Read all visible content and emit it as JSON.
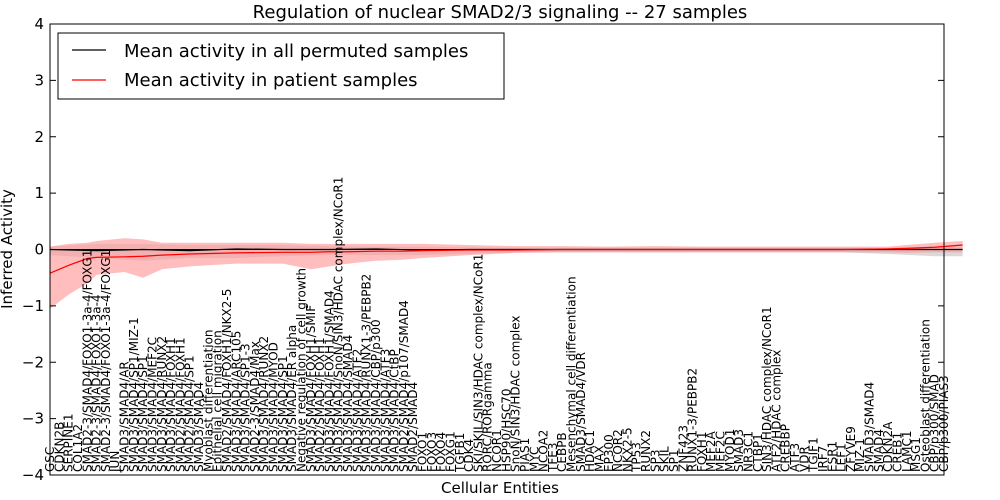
{
  "chart_data": {
    "type": "line",
    "title": "Regulation of nuclear SMAD2/3 signaling -- 27 samples",
    "xlabel": "Cellular Entities",
    "ylabel": "Inferred Activity",
    "ylim": [
      -4,
      4
    ],
    "yticks": [
      -4,
      -3,
      -2,
      -1,
      0,
      1,
      2,
      3,
      4
    ],
    "grid": false,
    "legend_position": "top-left",
    "colors": {
      "permuted": "#000000",
      "patient": "#ff0000",
      "band_patient": "#ff9999",
      "band_permuted": "#bbbbbb"
    },
    "legend": [
      "Mean activity in all permuted samples",
      "Mean activity in patient samples"
    ],
    "categories": [
      "GSC",
      "CDKN2B",
      "SERPINE1",
      "COL1A2",
      "SMAD2-3/SMAD4/FOXO1-3a-4/FOXG1",
      "SMAD2-3/SMAD4/FOXO1-3a-4",
      "SMAD2-3/SMAD4/FOXO1-3a-4/FOXG1",
      "JUN",
      "SMAD3/SMAD4/AR",
      "SMAD3/SMAD4/SP1/MIZ-1",
      "SMAD3/SMAD4/SP1",
      "SMAD3/SMAD4/MEF2C",
      "SMAD3/SMAD4/RUNX2",
      "SMAD3/SMAD4/FOXH1",
      "SMAD2/SMAD4/FOXH1",
      "SMAD2/SMAD4/SP1",
      "SMAD3/SMAD4",
      "Myoblast differentiation",
      "Epithelial cell migration",
      "SMAD2/SMAD4/FOXH1/NKX2-5",
      "SMAD3/SMAD4/ARC105",
      "SMAD3/SMAD4/SP1-3",
      "SMAD2-3/SMAD4/Max",
      "SMAD3/SMAD4/RUNX2",
      "SMAD3/SMAD4/MYOD",
      "SMAD3/SMAD4/SP1",
      "SMAD3/SMAD4/ER alpha",
      "Negative regulation of cell growth",
      "SMAD3/SMAD4/FOXH1/SMIF",
      "SMAD2/SMAD4/FOXH1",
      "SMAD3/SMAD4/FOXH1/SMAD4",
      "SMAD3/SMAD4/SnoN/SIN3/HDAC complex/NCoR1",
      "SMAD3/SMAD4/SMAD4",
      "SMAD3/SMAD4/ATF2",
      "SMAD3/SMAD4/RUNX1-3/PEBPB2",
      "SMAD3/SMAD4/CBP/p300",
      "SMAD3/SMAD4/ATF3",
      "SMAD3/SMAD4/CtBP",
      "SMAD2/SMAD4/p107/SMAD4",
      "SMAD2/SMAD4",
      "FOXO1",
      "FOXO3",
      "FOXO4",
      "FOXG1",
      "TGFB1",
      "CDK4",
      "SKI/SKIL/SIN3/HDAC complex/NCoR1",
      "RORC/RORgamma",
      "NCOR1",
      "HSP90/HSC70",
      "SnoN/SIN3/HDAC complex",
      "PIAS1",
      "MYC",
      "NCOA2",
      "TFE3",
      "CEBPB",
      "Mesenchymal cell differentiation",
      "SMAD3/SMAD4/VDR",
      "HDAC1",
      "MAX",
      "EP300",
      "NCOR2",
      "NKX2-5",
      "TP53",
      "RUNX2",
      "SP3",
      "SKIL",
      "SP1",
      "ZNF423",
      "RUNX1-3/PEBPB2",
      "FOXH1",
      "MEF2A",
      "MEF2C",
      "MYOD1",
      "SMAD3",
      "NR3C1",
      "CTBP1",
      "SIN3/HDAC complex/NCoR1",
      "ATF2/HDAC complex",
      "CREBBP",
      "ATF3",
      "VDR",
      "TGIF1",
      "IRF7",
      "ESR1",
      "LEF1",
      "ZFYVE9",
      "MIZ-1",
      "SMAD3/SMAD4",
      "SMAD4",
      "CDKN2A",
      "CREB1",
      "LAMC1",
      "MSG1",
      "Osteoblast differentiation",
      "CBP/p300/SMAD",
      "CBP/p300/PIAS3"
    ],
    "series": [
      {
        "name": "Mean activity in all permuted samples",
        "x": [
          0,
          5,
          10,
          15,
          20,
          25,
          30,
          35,
          40,
          45,
          50,
          55,
          60,
          65,
          70,
          75,
          80,
          85,
          90,
          95,
          98
        ],
        "values": [
          0.0,
          -0.02,
          0.0,
          -0.02,
          0.01,
          0.0,
          0.0,
          0.01,
          -0.01,
          0.0,
          0.0,
          0.0,
          0.0,
          0.0,
          0.0,
          0.0,
          0.0,
          0.0,
          0.0,
          0.0,
          0.0
        ],
        "lower": [
          -0.1,
          -0.15,
          -0.2,
          -0.15,
          -0.15,
          -0.12,
          -0.1,
          -0.1,
          -0.1,
          -0.08,
          -0.05,
          -0.05,
          -0.05,
          -0.05,
          -0.05,
          -0.05,
          -0.05,
          -0.05,
          -0.08,
          -0.12,
          -0.12
        ],
        "upper": [
          0.05,
          0.1,
          0.1,
          0.08,
          0.08,
          0.08,
          0.06,
          0.05,
          0.05,
          0.04,
          0.03,
          0.03,
          0.03,
          0.03,
          0.03,
          0.03,
          0.03,
          0.03,
          0.03,
          0.05,
          0.05
        ]
      },
      {
        "name": "Mean activity in patient samples",
        "x": [
          0,
          2,
          4,
          5,
          8,
          10,
          12,
          15,
          20,
          25,
          28,
          30,
          32,
          35,
          38,
          40,
          45,
          50,
          55,
          60,
          65,
          70,
          75,
          80,
          85,
          90,
          92,
          95,
          98
        ],
        "values": [
          -0.42,
          -0.28,
          -0.16,
          -0.14,
          -0.13,
          -0.12,
          -0.1,
          -0.08,
          -0.06,
          -0.05,
          -0.05,
          -0.04,
          -0.04,
          -0.03,
          -0.03,
          -0.02,
          -0.01,
          -0.01,
          0.0,
          0.0,
          0.0,
          0.0,
          0.0,
          0.0,
          0.0,
          0.01,
          0.02,
          0.04,
          0.08
        ],
        "lower": [
          -1.05,
          -0.8,
          -0.6,
          -0.45,
          -0.4,
          -0.5,
          -0.35,
          -0.3,
          -0.25,
          -0.25,
          -0.35,
          -0.3,
          -0.25,
          -0.2,
          -0.18,
          -0.15,
          -0.1,
          -0.06,
          -0.05,
          -0.05,
          -0.05,
          -0.05,
          -0.05,
          -0.05,
          -0.05,
          -0.05,
          -0.06,
          -0.05,
          -0.05
        ],
        "upper": [
          0.05,
          0.1,
          0.12,
          0.15,
          0.2,
          0.18,
          0.12,
          0.12,
          0.12,
          0.12,
          0.1,
          0.1,
          0.1,
          0.1,
          0.1,
          0.1,
          0.08,
          0.06,
          0.06,
          0.05,
          0.06,
          0.05,
          0.05,
          0.05,
          0.05,
          0.05,
          0.08,
          0.12,
          0.15
        ]
      }
    ]
  }
}
